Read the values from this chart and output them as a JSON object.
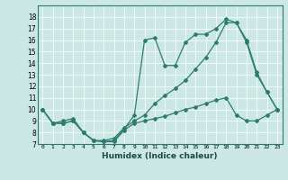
{
  "xlabel": "Humidex (Indice chaleur)",
  "bg_color": "#cce8e4",
  "line_color": "#2d7d6e",
  "xlim": [
    -0.5,
    23.5
  ],
  "ylim": [
    7,
    19
  ],
  "yticks": [
    7,
    8,
    9,
    10,
    11,
    12,
    13,
    14,
    15,
    16,
    17,
    18
  ],
  "xticks": [
    0,
    1,
    2,
    3,
    4,
    5,
    6,
    7,
    8,
    9,
    10,
    11,
    12,
    13,
    14,
    15,
    16,
    17,
    18,
    19,
    20,
    21,
    22,
    23
  ],
  "line1_x": [
    0,
    1,
    2,
    3,
    4,
    5,
    6,
    7,
    8,
    9,
    10,
    11,
    12,
    13,
    14,
    15,
    16,
    17,
    18,
    19,
    20,
    21,
    22,
    23
  ],
  "line1_y": [
    10.0,
    8.8,
    8.8,
    9.0,
    8.0,
    7.3,
    7.2,
    7.3,
    8.3,
    9.5,
    16.0,
    16.2,
    13.8,
    13.8,
    15.8,
    16.5,
    16.5,
    17.0,
    17.8,
    17.5,
    16.0,
    13.2,
    11.5,
    10.0
  ],
  "line2_x": [
    0,
    1,
    2,
    3,
    4,
    5,
    6,
    7,
    8,
    9,
    10,
    11,
    12,
    13,
    14,
    15,
    16,
    17,
    18,
    19,
    20,
    21,
    22,
    23
  ],
  "line2_y": [
    10.0,
    8.8,
    8.8,
    9.0,
    8.0,
    7.3,
    7.2,
    7.2,
    8.2,
    8.8,
    9.0,
    9.2,
    9.4,
    9.7,
    10.0,
    10.2,
    10.5,
    10.8,
    11.0,
    9.5,
    9.0,
    9.0,
    9.5,
    10.0
  ],
  "line3_x": [
    0,
    1,
    2,
    3,
    4,
    5,
    6,
    7,
    8,
    9,
    10,
    11,
    12,
    13,
    14,
    15,
    16,
    17,
    18,
    19,
    20,
    21,
    22,
    23
  ],
  "line3_y": [
    10.0,
    8.8,
    9.0,
    9.2,
    8.0,
    7.3,
    7.3,
    7.5,
    8.4,
    9.0,
    9.5,
    10.5,
    11.2,
    11.8,
    12.5,
    13.5,
    14.5,
    15.8,
    17.5,
    17.5,
    15.8,
    13.0,
    11.5,
    10.0
  ]
}
